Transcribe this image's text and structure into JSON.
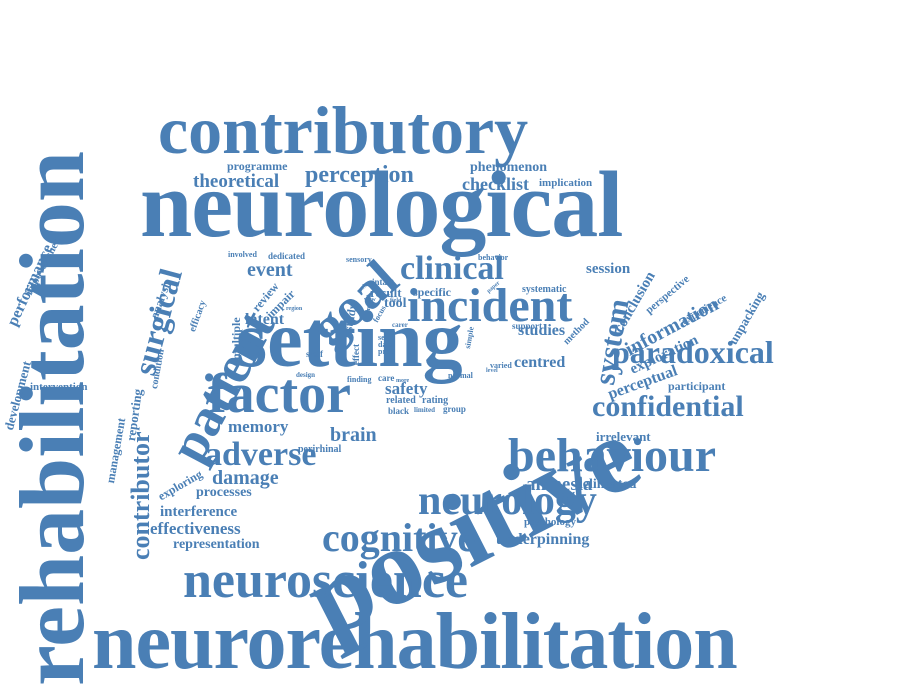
{
  "color": "#4a7fb5",
  "words": [
    "rehabilitation",
    "neurorehabilitation",
    "neurological",
    "contributory",
    "positive",
    "setting",
    "factor",
    "neuroscience",
    "incident",
    "goal",
    "patient",
    "behaviour",
    "neurology",
    "cognitive",
    "paradoxical",
    "confidential",
    "clinical",
    "adverse",
    "system",
    "surgical",
    "contributor",
    "perception",
    "theoretical",
    "checklist",
    "phenomenon",
    "programme",
    "implication",
    "performance",
    "development",
    "impoverished",
    "intervention",
    "management",
    "reporting",
    "analysis",
    "efficacy",
    "condition",
    "exploring",
    "review",
    "impair",
    "multiple",
    "event",
    "latent",
    "memory",
    "brain",
    "damage",
    "processes",
    "interference",
    "effectiveness",
    "representation",
    "perirhinal",
    "amnesia",
    "delineated",
    "underpinning",
    "psychology",
    "irrelevant",
    "perceptual",
    "participant",
    "information",
    "conclusion",
    "perspective",
    "exploration",
    "experience",
    "unpacking",
    "session",
    "centred",
    "studies",
    "support",
    "method",
    "systematic",
    "safety",
    "related",
    "rating",
    "black",
    "limited",
    "group",
    "result",
    "specific",
    "intact",
    "tool",
    "field",
    "carer",
    "failure",
    "simple",
    "varied",
    "finding",
    "care",
    "normal",
    "self",
    "effect",
    "data",
    "proc",
    "design",
    "staff",
    "focus",
    "study",
    "sensory",
    "involved",
    "dedicated",
    "behavior",
    "paper",
    "scale",
    "region",
    "level",
    "view",
    "insight",
    "more"
  ]
}
